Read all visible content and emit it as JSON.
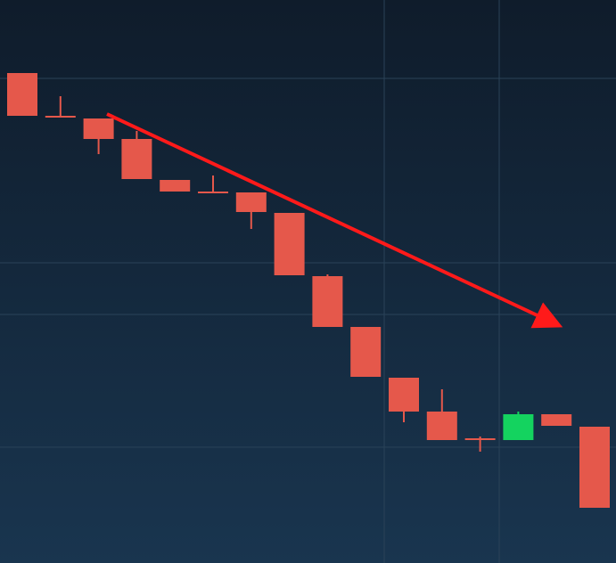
{
  "chart_data": {
    "type": "candlestick",
    "categories": [
      null,
      null,
      null,
      null,
      null,
      null,
      null,
      null,
      null,
      null,
      null,
      null,
      null,
      null,
      null,
      null
    ],
    "open": [
      550,
      501,
      499,
      476,
      430,
      416,
      416,
      393,
      322,
      265,
      208,
      170,
      139,
      138,
      167,
      153
    ],
    "high": [
      550,
      524,
      499,
      485,
      430,
      435,
      416,
      393,
      324,
      265,
      208,
      195,
      142,
      170,
      167,
      153
    ],
    "low": [
      502,
      501,
      459,
      431,
      417,
      416,
      375,
      323,
      265,
      209,
      158,
      138,
      125,
      138,
      154,
      62
    ],
    "close": [
      502,
      501,
      476,
      431,
      417,
      416,
      394,
      323,
      265,
      209,
      170,
      138,
      139,
      167,
      154,
      62
    ],
    "ylim": [
      0,
      632
    ],
    "up_color": "#14d35f",
    "down_color": "#e5584b"
  }
}
